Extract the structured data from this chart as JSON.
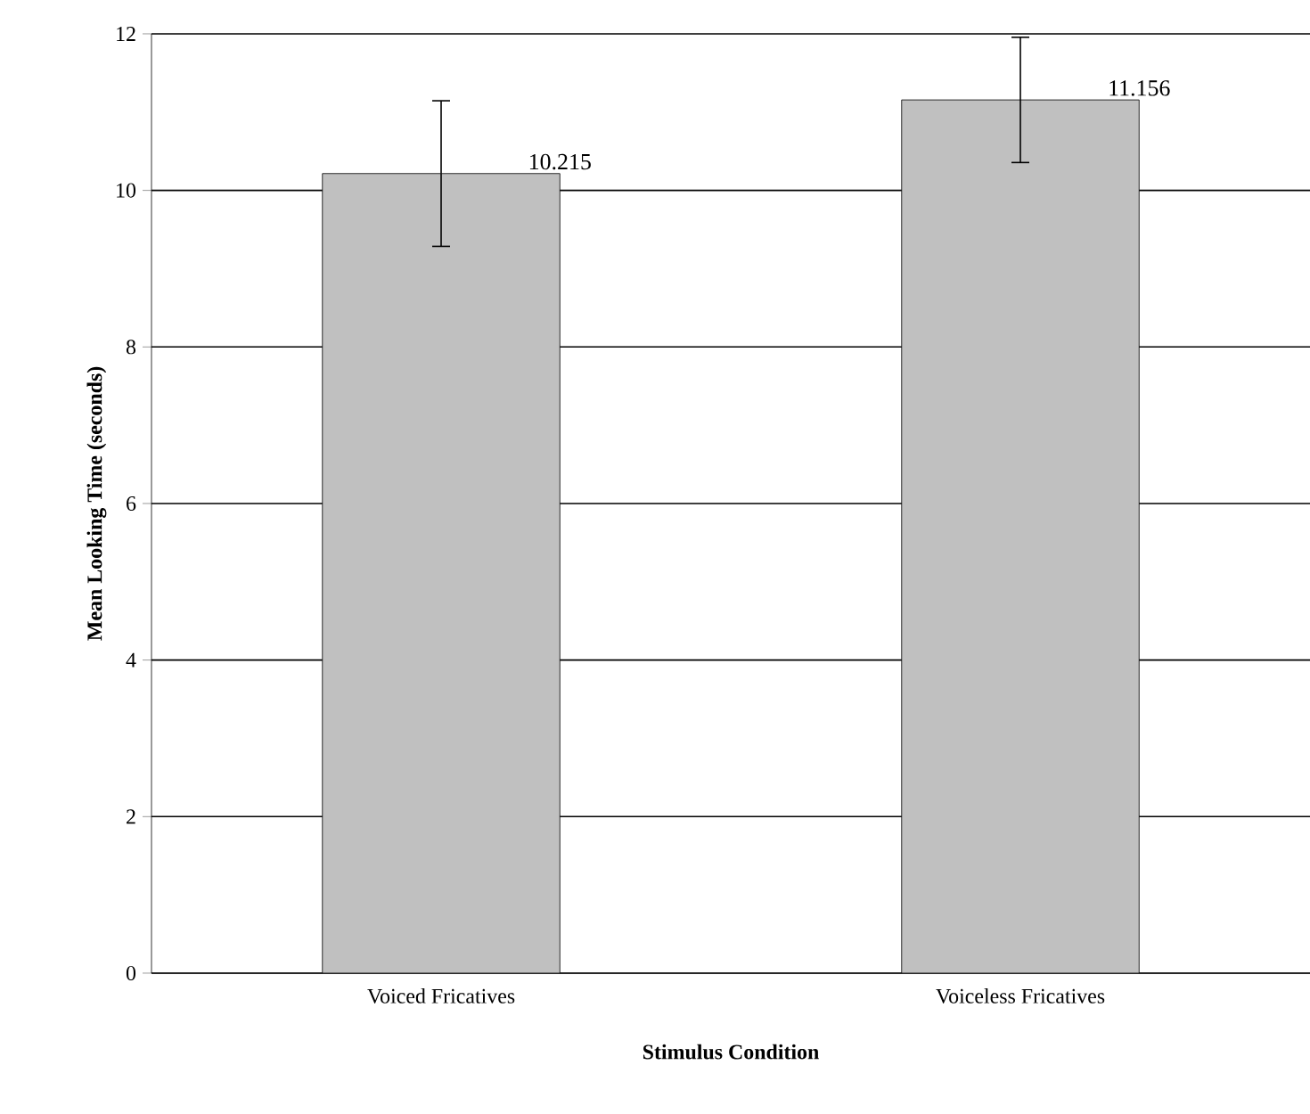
{
  "chart_data": {
    "type": "bar",
    "xlabel": "Stimulus Condition",
    "ylabel": "Mean Looking Time (seconds)",
    "categories": [
      "Voiced Fricatives",
      "Voiceless Fricatives"
    ],
    "values": [
      10.215,
      11.156
    ],
    "errors": [
      0.93,
      0.8
    ],
    "value_labels": [
      "10.215",
      "11.156"
    ],
    "color": "#c0c0c0",
    "ylim": [
      0,
      12
    ],
    "yticks": [
      0,
      2,
      4,
      6,
      8,
      10,
      12
    ],
    "grid": "y"
  }
}
